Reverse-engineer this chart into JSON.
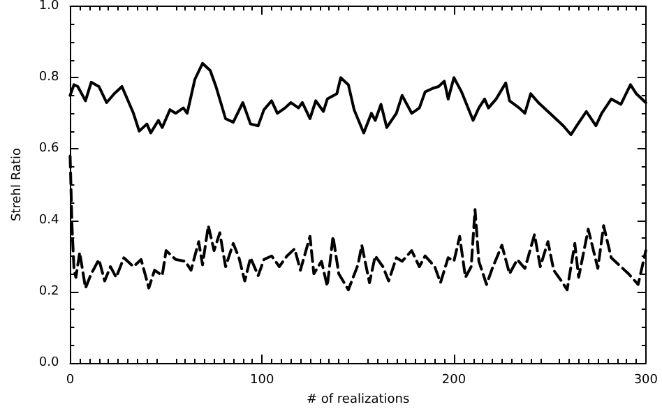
{
  "chart_data": {
    "type": "line",
    "xlabel": "# of realizations",
    "ylabel": "Strehl Ratio",
    "xlim": [
      0,
      300
    ],
    "xticks": [
      0,
      100,
      200,
      300
    ],
    "ylim": [
      0,
      1
    ],
    "yticks": [
      {
        "value": 0,
        "label": "0.0"
      },
      0.2,
      0.4,
      0.6,
      0.8,
      {
        "value": 1,
        "label": "1.0"
      }
    ],
    "grid": false,
    "marker": "none",
    "series": [
      {
        "color": "#000000",
        "line_style": "solid",
        "x": [
          0,
          2,
          4,
          8,
          11,
          15,
          19,
          23,
          27,
          29,
          33,
          36,
          40,
          42,
          46,
          48,
          52,
          55,
          59,
          61,
          65,
          69,
          73,
          76,
          81,
          85,
          90,
          94,
          98,
          101,
          105,
          108,
          112,
          115,
          119,
          121,
          125,
          128,
          132,
          134,
          139,
          141,
          145,
          148,
          153,
          157,
          159,
          162,
          165,
          170,
          173,
          178,
          182,
          185,
          189,
          192,
          195,
          197,
          200,
          204,
          210,
          213,
          216,
          218,
          222,
          227,
          229,
          234,
          237,
          240,
          244,
          250,
          254,
          257,
          261,
          264,
          269,
          274,
          277,
          282,
          287,
          292,
          295,
          300
        ],
        "values": [
          0.75,
          0.78,
          0.775,
          0.735,
          0.787,
          0.775,
          0.73,
          0.755,
          0.775,
          0.75,
          0.7,
          0.65,
          0.67,
          0.645,
          0.68,
          0.66,
          0.71,
          0.7,
          0.715,
          0.7,
          0.795,
          0.84,
          0.82,
          0.775,
          0.685,
          0.675,
          0.73,
          0.67,
          0.665,
          0.71,
          0.735,
          0.7,
          0.715,
          0.73,
          0.715,
          0.73,
          0.685,
          0.735,
          0.705,
          0.74,
          0.755,
          0.8,
          0.78,
          0.71,
          0.645,
          0.7,
          0.68,
          0.725,
          0.66,
          0.7,
          0.75,
          0.7,
          0.715,
          0.76,
          0.77,
          0.775,
          0.79,
          0.74,
          0.8,
          0.76,
          0.68,
          0.715,
          0.74,
          0.715,
          0.74,
          0.785,
          0.735,
          0.715,
          0.7,
          0.755,
          0.73,
          0.7,
          0.68,
          0.665,
          0.64,
          0.665,
          0.705,
          0.665,
          0.7,
          0.74,
          0.725,
          0.78,
          0.755,
          0.73
        ]
      },
      {
        "color": "#000000",
        "line_style": "dashed",
        "x": [
          0,
          1,
          2,
          3,
          5,
          8,
          11,
          15,
          18,
          21,
          24,
          28,
          33,
          37,
          41,
          44,
          48,
          50,
          55,
          60,
          63,
          67,
          69,
          72,
          75,
          78,
          81,
          85,
          88,
          91,
          94,
          98,
          101,
          105,
          109,
          113,
          117,
          120,
          125,
          127,
          131,
          134,
          137,
          140,
          145,
          150,
          152,
          156,
          159,
          163,
          166,
          170,
          173,
          178,
          182,
          185,
          190,
          193,
          197,
          200,
          203,
          206,
          209,
          211,
          213,
          217,
          220,
          225,
          229,
          233,
          237,
          242,
          245,
          249,
          252,
          256,
          259,
          263,
          265,
          270,
          275,
          278,
          282,
          287,
          291,
          296,
          300
        ],
        "values": [
          0.58,
          0.38,
          0.265,
          0.24,
          0.31,
          0.21,
          0.25,
          0.29,
          0.23,
          0.27,
          0.24,
          0.295,
          0.27,
          0.29,
          0.21,
          0.26,
          0.245,
          0.315,
          0.29,
          0.285,
          0.26,
          0.34,
          0.275,
          0.385,
          0.315,
          0.365,
          0.27,
          0.335,
          0.295,
          0.23,
          0.295,
          0.245,
          0.29,
          0.3,
          0.27,
          0.3,
          0.32,
          0.26,
          0.355,
          0.25,
          0.285,
          0.215,
          0.355,
          0.25,
          0.205,
          0.275,
          0.33,
          0.225,
          0.3,
          0.27,
          0.23,
          0.295,
          0.285,
          0.315,
          0.27,
          0.3,
          0.27,
          0.225,
          0.295,
          0.285,
          0.355,
          0.24,
          0.27,
          0.43,
          0.285,
          0.22,
          0.265,
          0.33,
          0.25,
          0.29,
          0.265,
          0.36,
          0.27,
          0.34,
          0.26,
          0.23,
          0.205,
          0.335,
          0.24,
          0.375,
          0.265,
          0.385,
          0.295,
          0.27,
          0.25,
          0.22,
          0.315
        ]
      }
    ]
  }
}
